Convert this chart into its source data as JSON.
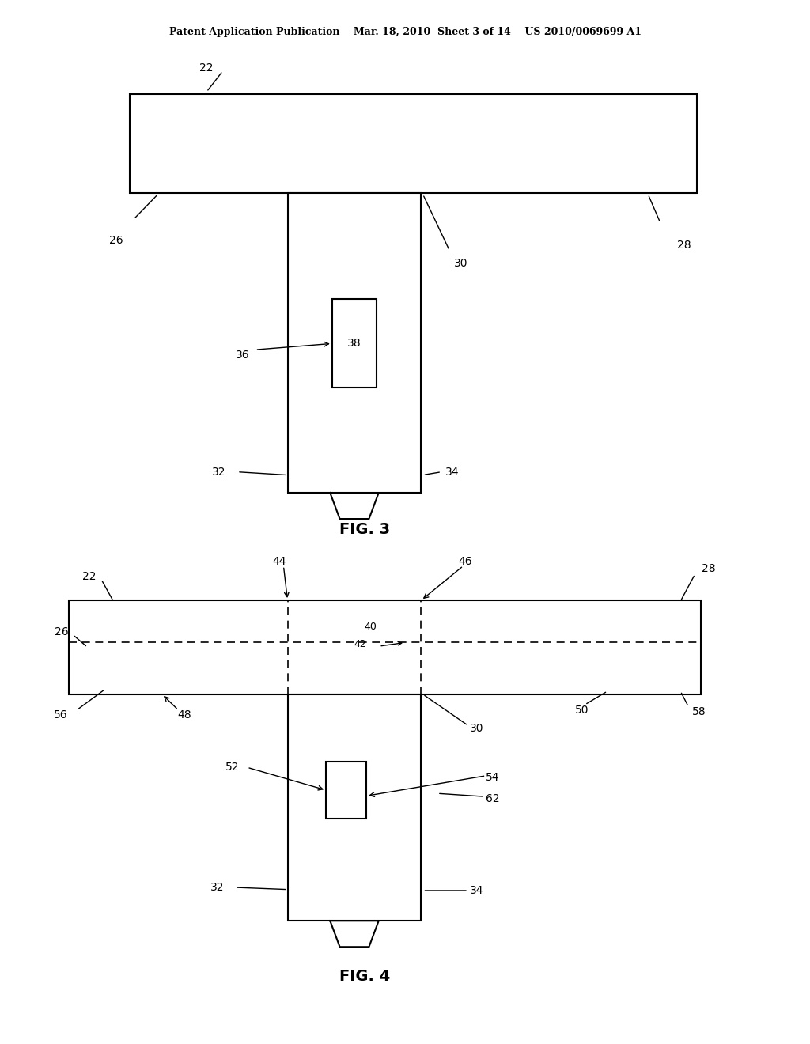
{
  "bg_color": "#ffffff",
  "line_color": "#000000",
  "header_text": "Patent Application Publication    Mar. 18, 2010  Sheet 3 of 14    US 2010/0069699 A1",
  "fig3_label": "FIG. 3",
  "fig4_label": "FIG. 4"
}
